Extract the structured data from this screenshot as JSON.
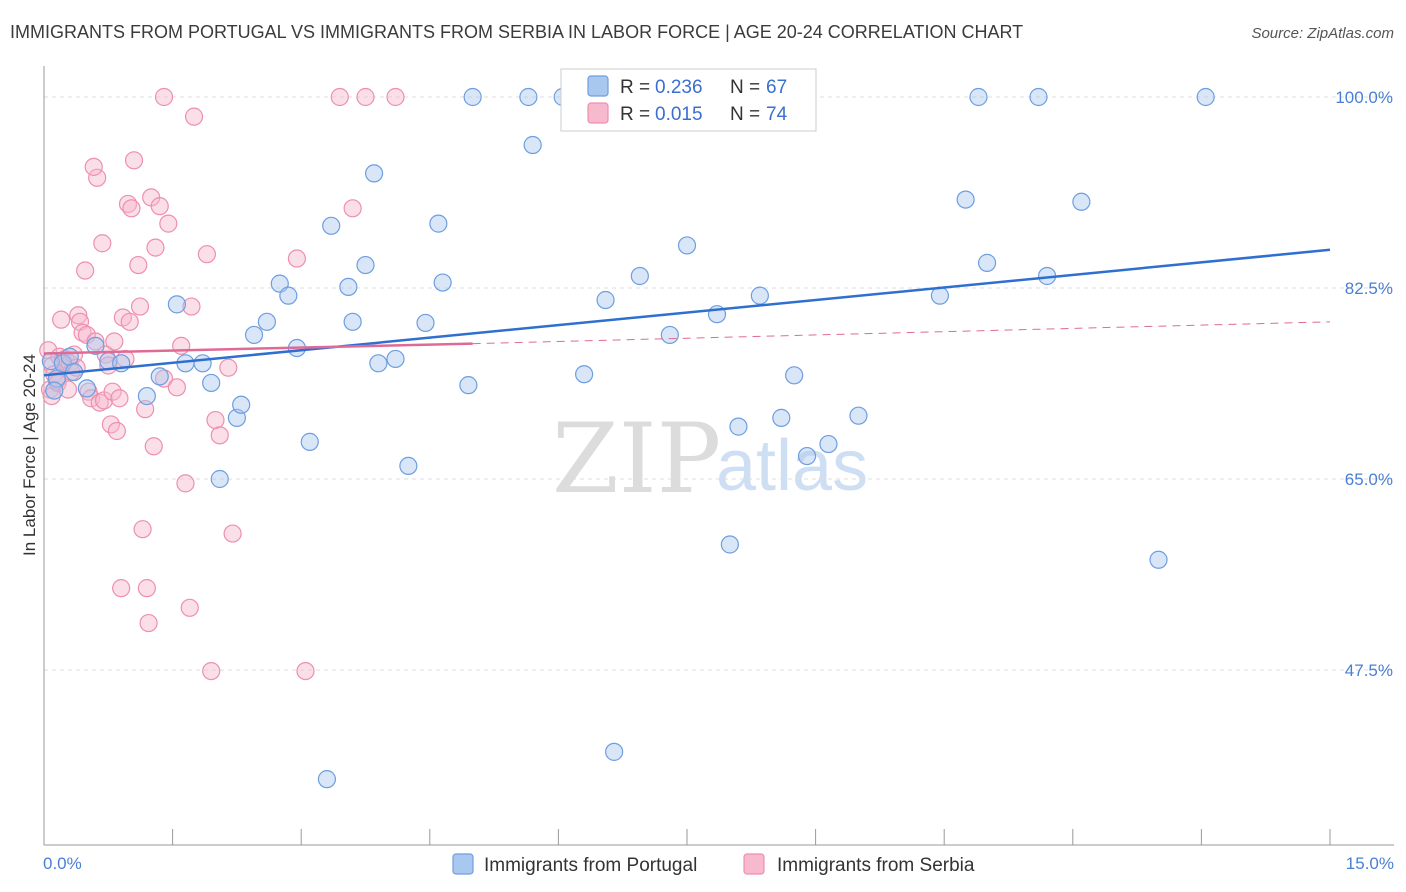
{
  "title": "IMMIGRANTS FROM PORTUGAL VS IMMIGRANTS FROM SERBIA IN LABOR FORCE | AGE 20-24 CORRELATION CHART",
  "source": "Source: ZipAtlas.com",
  "watermark": {
    "part1": "ZIP",
    "part2": "atlas"
  },
  "colors": {
    "blue_fill": "#a9c8f0",
    "blue_stroke": "#6d9ee0",
    "blue_line": "#2f6fd0",
    "pink_fill": "#f7b9cd",
    "pink_stroke": "#ee8fae",
    "pink_line": "#e06a96",
    "axis_text": "#4a7fd4",
    "grid": "#dddddd"
  },
  "legend": {
    "rows": [
      {
        "r_label": "R = ",
        "r_value": "0.236",
        "n_label": "N = ",
        "n_value": "67"
      },
      {
        "r_label": "R = ",
        "r_value": "0.015",
        "n_label": "N = ",
        "n_value": "74"
      }
    ]
  },
  "chart_data": {
    "type": "scatter",
    "title": "IMMIGRANTS FROM PORTUGAL VS IMMIGRANTS FROM SERBIA IN LABOR FORCE | AGE 20-24 CORRELATION CHART",
    "xlabel": "",
    "ylabel": "In Labor Force | Age 20-24",
    "xlim": [
      0,
      15
    ],
    "ylim": [
      31,
      102
    ],
    "x_tick_labels": [
      "0.0%",
      "15.0%"
    ],
    "y_ticks": [
      {
        "value": 100,
        "label": "100.0%"
      },
      {
        "value": 82.5,
        "label": "82.5%"
      },
      {
        "value": 65,
        "label": "65.0%"
      },
      {
        "value": 47.5,
        "label": "47.5%"
      }
    ],
    "grid": true,
    "series": [
      {
        "name": "Immigrants from Portugal",
        "r": 0.236,
        "n": 67,
        "trend": {
          "x0": 0,
          "y0": 74.5,
          "x1": 15,
          "y1": 86.0,
          "style": "solid"
        },
        "points": [
          [
            0.08,
            75.8
          ],
          [
            0.15,
            74.2
          ],
          [
            0.22,
            75.6
          ],
          [
            0.3,
            76.2
          ],
          [
            0.5,
            73.3
          ],
          [
            0.6,
            77.2
          ],
          [
            0.75,
            75.8
          ],
          [
            0.9,
            75.6
          ],
          [
            1.2,
            72.6
          ],
          [
            1.35,
            74.4
          ],
          [
            1.55,
            81.0
          ],
          [
            1.65,
            75.6
          ],
          [
            1.85,
            75.6
          ],
          [
            1.95,
            73.8
          ],
          [
            2.05,
            65.0
          ],
          [
            2.25,
            70.6
          ],
          [
            2.3,
            71.8
          ],
          [
            2.45,
            78.2
          ],
          [
            2.6,
            79.4
          ],
          [
            2.75,
            82.9
          ],
          [
            2.85,
            81.8
          ],
          [
            2.95,
            77.0
          ],
          [
            3.1,
            68.4
          ],
          [
            3.3,
            37.5
          ],
          [
            3.35,
            88.2
          ],
          [
            3.55,
            82.6
          ],
          [
            3.6,
            79.4
          ],
          [
            3.75,
            84.6
          ],
          [
            3.85,
            93.0
          ],
          [
            3.9,
            75.6
          ],
          [
            4.1,
            76.0
          ],
          [
            4.25,
            66.2
          ],
          [
            4.45,
            79.3
          ],
          [
            4.6,
            88.4
          ],
          [
            4.65,
            83.0
          ],
          [
            4.95,
            73.6
          ],
          [
            5.0,
            100.0
          ],
          [
            5.65,
            100.0
          ],
          [
            5.7,
            95.6
          ],
          [
            6.05,
            100.0
          ],
          [
            6.3,
            74.6
          ],
          [
            6.55,
            81.4
          ],
          [
            6.65,
            40.0
          ],
          [
            6.75,
            100.0
          ],
          [
            6.95,
            83.6
          ],
          [
            7.3,
            78.2
          ],
          [
            7.5,
            86.4
          ],
          [
            7.85,
            80.1
          ],
          [
            8.0,
            59.0
          ],
          [
            8.1,
            69.8
          ],
          [
            8.35,
            81.8
          ],
          [
            8.6,
            70.6
          ],
          [
            8.75,
            74.5
          ],
          [
            8.9,
            67.1
          ],
          [
            9.15,
            68.2
          ],
          [
            9.5,
            70.8
          ],
          [
            10.45,
            81.8
          ],
          [
            10.75,
            90.6
          ],
          [
            10.9,
            100.0
          ],
          [
            11.0,
            84.8
          ],
          [
            11.6,
            100.0
          ],
          [
            11.7,
            83.6
          ],
          [
            12.1,
            90.4
          ],
          [
            13.0,
            57.6
          ],
          [
            13.55,
            100.0
          ],
          [
            0.12,
            73.1
          ],
          [
            0.35,
            74.8
          ]
        ]
      },
      {
        "name": "Immigrants from Serbia",
        "r": 0.015,
        "n": 74,
        "trend": {
          "x0": 0,
          "y0": 76.5,
          "x1": 5.0,
          "y1": 77.4,
          "style": "solid",
          "ext_x1": 15,
          "ext_y1": 79.4
        },
        "points": [
          [
            0.05,
            76.8
          ],
          [
            0.07,
            73.2
          ],
          [
            0.09,
            72.6
          ],
          [
            0.1,
            75.4
          ],
          [
            0.12,
            74.6
          ],
          [
            0.15,
            74.0
          ],
          [
            0.16,
            73.8
          ],
          [
            0.18,
            76.2
          ],
          [
            0.2,
            79.6
          ],
          [
            0.22,
            75.8
          ],
          [
            0.25,
            76.0
          ],
          [
            0.28,
            73.2
          ],
          [
            0.3,
            75.6
          ],
          [
            0.32,
            74.8
          ],
          [
            0.35,
            76.4
          ],
          [
            0.38,
            75.2
          ],
          [
            0.4,
            80.0
          ],
          [
            0.42,
            79.4
          ],
          [
            0.45,
            78.4
          ],
          [
            0.48,
            84.1
          ],
          [
            0.5,
            78.2
          ],
          [
            0.52,
            73.0
          ],
          [
            0.55,
            72.4
          ],
          [
            0.6,
            77.6
          ],
          [
            0.62,
            92.6
          ],
          [
            0.65,
            72.0
          ],
          [
            0.68,
            86.6
          ],
          [
            0.7,
            72.2
          ],
          [
            0.72,
            76.4
          ],
          [
            0.75,
            75.4
          ],
          [
            0.78,
            70.0
          ],
          [
            0.8,
            73.0
          ],
          [
            0.82,
            77.6
          ],
          [
            0.85,
            69.4
          ],
          [
            0.88,
            72.4
          ],
          [
            0.9,
            55.0
          ],
          [
            0.92,
            79.8
          ],
          [
            0.95,
            76.0
          ],
          [
            0.98,
            90.2
          ],
          [
            1.0,
            79.4
          ],
          [
            1.02,
            89.8
          ],
          [
            1.05,
            94.2
          ],
          [
            1.1,
            84.6
          ],
          [
            1.12,
            80.8
          ],
          [
            1.15,
            60.4
          ],
          [
            1.2,
            55.0
          ],
          [
            1.22,
            51.8
          ],
          [
            1.25,
            90.8
          ],
          [
            1.28,
            68.0
          ],
          [
            1.3,
            86.2
          ],
          [
            1.35,
            90.0
          ],
          [
            1.4,
            74.2
          ],
          [
            1.45,
            88.4
          ],
          [
            1.55,
            73.4
          ],
          [
            1.6,
            77.2
          ],
          [
            1.65,
            64.6
          ],
          [
            1.7,
            53.2
          ],
          [
            1.72,
            80.8
          ],
          [
            1.9,
            85.6
          ],
          [
            1.95,
            47.4
          ],
          [
            2.0,
            70.4
          ],
          [
            2.05,
            69.0
          ],
          [
            2.15,
            75.2
          ],
          [
            2.2,
            60.0
          ],
          [
            1.4,
            100.0
          ],
          [
            1.75,
            98.2
          ],
          [
            3.45,
            100.0
          ],
          [
            4.1,
            100.0
          ],
          [
            3.75,
            100.0
          ],
          [
            2.95,
            85.2
          ],
          [
            3.6,
            89.8
          ],
          [
            3.05,
            47.4
          ],
          [
            0.58,
            93.6
          ],
          [
            1.18,
            71.4
          ]
        ]
      }
    ]
  }
}
